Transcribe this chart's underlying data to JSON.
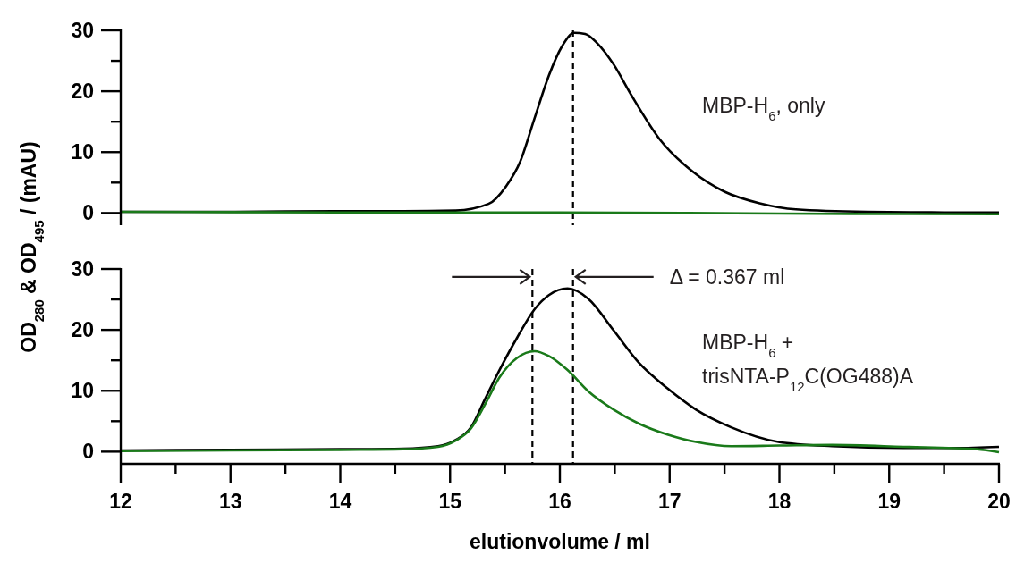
{
  "chart_data": [
    {
      "type": "line",
      "ylabel": "OD$_{280}$ & OD$_{495}$ / (mAU)",
      "xlim": [
        12,
        20
      ],
      "xticks": [
        12,
        13,
        14,
        15,
        16,
        17,
        18,
        19,
        20
      ],
      "ylim": [
        -2,
        30
      ],
      "yticks": [
        0,
        10,
        20,
        30
      ],
      "tick_labels": "y",
      "line_style": "solid",
      "grid": false,
      "series": [
        {
          "color": "#000000",
          "x": [
            12,
            13,
            14,
            14.57,
            15.05,
            15.35,
            15.51,
            15.64,
            15.77,
            15.9,
            16.02,
            16.13,
            16.23,
            16.34,
            16.49,
            16.65,
            16.91,
            17.21,
            17.5,
            17.82,
            18.15,
            18.8,
            19.5,
            20
          ],
          "values": [
            0.2,
            0.2,
            0.3,
            0.3,
            0.4,
            1.5,
            4.4,
            8.5,
            15.6,
            22.6,
            27.4,
            29.6,
            29.4,
            27.9,
            24.4,
            19.4,
            12.1,
            6.8,
            3.5,
            1.6,
            0.6,
            0.2,
            0.1,
            0.1
          ]
        },
        {
          "color": "#1a7a1a",
          "x": [
            12,
            14,
            16,
            18,
            20
          ],
          "values": [
            0.2,
            0.1,
            0.1,
            -0.1,
            -0.2
          ]
        }
      ],
      "ref_lines": [
        {
          "axis": "x",
          "value": 16.12,
          "line_style": "dashed",
          "color": "#000000"
        }
      ],
      "annotations": [
        "MBP-H$_{6}$, only"
      ]
    },
    {
      "type": "line",
      "xlabel": "elutionvolume / ml",
      "xlim": [
        12,
        20
      ],
      "xticks": [
        12,
        13,
        14,
        15,
        16,
        17,
        18,
        19,
        20
      ],
      "ylim": [
        -2,
        30
      ],
      "yticks": [
        0,
        10,
        20,
        30
      ],
      "line_style": "solid",
      "grid": false,
      "series": [
        {
          "color": "#000000",
          "x": [
            12,
            13,
            14,
            14.57,
            14.89,
            15.05,
            15.19,
            15.32,
            15.45,
            15.61,
            15.77,
            15.9,
            16.07,
            16.26,
            16.49,
            16.72,
            16.98,
            17.24,
            17.56,
            17.99,
            18.48,
            19.13,
            19.6,
            20
          ],
          "values": [
            0.2,
            0.3,
            0.4,
            0.5,
            0.9,
            1.9,
            4,
            8.7,
            13.4,
            18.7,
            23.4,
            25.7,
            26.8,
            25.1,
            19.9,
            14.6,
            10.4,
            6.9,
            4,
            1.6,
            0.9,
            0.6,
            0.6,
            0.8
          ]
        },
        {
          "color": "#1a7a1a",
          "x": [
            12,
            14,
            14.57,
            14.89,
            15.05,
            15.19,
            15.32,
            15.45,
            15.61,
            15.77,
            15.9,
            16.07,
            16.26,
            16.49,
            16.72,
            16.98,
            17.24,
            17.56,
            18,
            18.48,
            19.13,
            19.8,
            20
          ],
          "values": [
            0.1,
            0.3,
            0.4,
            0.8,
            1.8,
            3.8,
            7.8,
            12.2,
            15.4,
            16.5,
            15.7,
            13.4,
            9.9,
            6.9,
            4.6,
            2.8,
            1.6,
            0.9,
            1,
            1.1,
            0.8,
            0.4,
            -0.1
          ]
        }
      ],
      "ref_lines": [
        {
          "axis": "x",
          "value": 15.75,
          "line_style": "dashed",
          "color": "#000000"
        },
        {
          "axis": "x",
          "value": 16.12,
          "line_style": "dashed",
          "color": "#000000"
        }
      ],
      "annotations": [
        {
          "text": "Δ = 0.367 ml",
          "x": 16.12,
          "y": 28.7
        },
        "MBP-H$_{6}$ +",
        "trisNTA-P$_{12}$C(OG488)A"
      ]
    }
  ]
}
